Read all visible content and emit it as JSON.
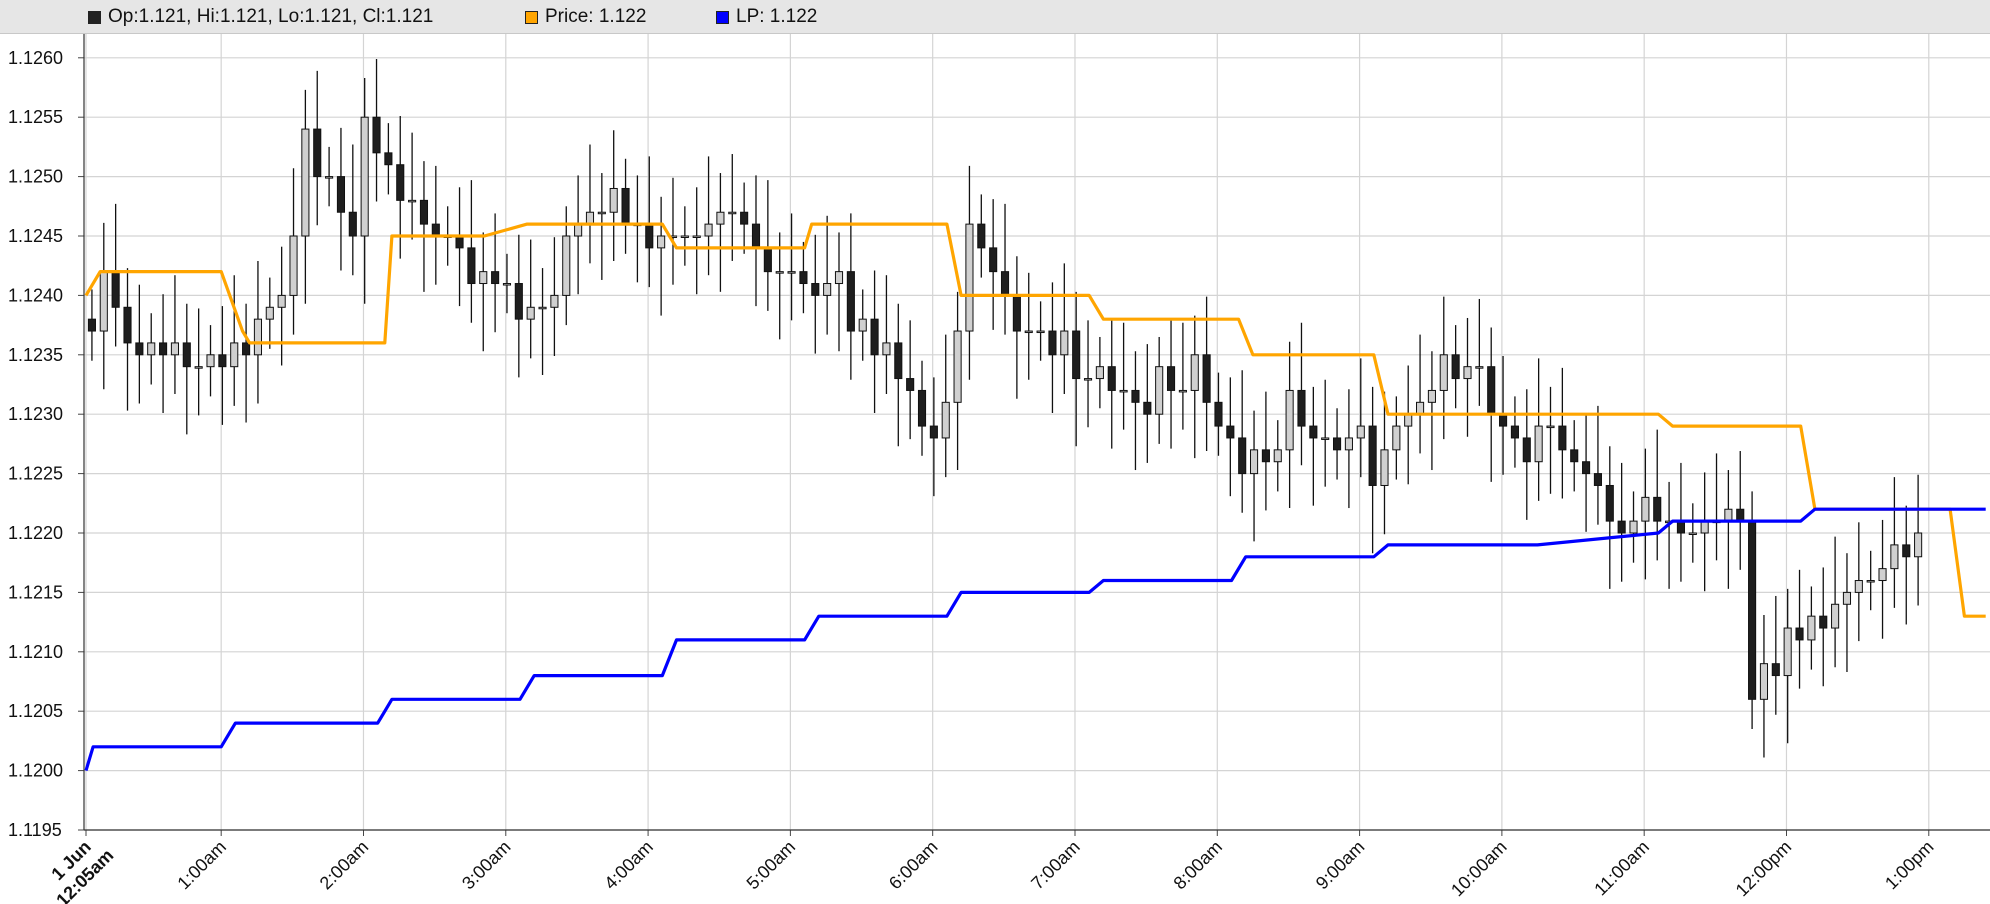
{
  "legend": {
    "ohlc_label": "Op:1.121, Hi:1.121, Lo:1.121, Cl:1.121",
    "price_label": "Price: 1.122",
    "lp_label": "LP: 1.122",
    "ohlc_color": "#222222",
    "price_color": "#ffa500",
    "lp_color": "#0000ff"
  },
  "chart_data": {
    "type": "candlestick",
    "ylim": [
      1.1195,
      1.1264
    ],
    "y_ticks": [
      "1.1260",
      "1.1255",
      "1.1250",
      "1.1245",
      "1.1240",
      "1.1235",
      "1.1230",
      "1.1225",
      "1.1220",
      "1.1215",
      "1.1210",
      "1.1205",
      "1.1200",
      "1.1195"
    ],
    "x_ticks": [
      {
        "label": "1 Jun",
        "sublabel": "12:05am",
        "bold": true
      },
      {
        "label": "1:00am"
      },
      {
        "label": "2:00am"
      },
      {
        "label": "3:00am"
      },
      {
        "label": "4:00am"
      },
      {
        "label": "5:00am"
      },
      {
        "label": "6:00am"
      },
      {
        "label": "7:00am"
      },
      {
        "label": "8:00am"
      },
      {
        "label": "9:00am"
      },
      {
        "label": "10:00am"
      },
      {
        "label": "11:00am"
      },
      {
        "label": "12:00pm"
      },
      {
        "label": "1:00pm"
      }
    ],
    "xlim_hours": [
      0,
      13.35
    ],
    "grid": true,
    "bar_minutes": 5,
    "candles_close": [
      1.1237,
      1.1242,
      1.1239,
      1.1236,
      1.1235,
      1.1236,
      1.1235,
      1.1236,
      1.1234,
      1.1234,
      1.1235,
      1.1234,
      1.1236,
      1.1235,
      1.1238,
      1.1239,
      1.124,
      1.1245,
      1.1254,
      1.125,
      1.125,
      1.1247,
      1.1245,
      1.1255,
      1.1252,
      1.1251,
      1.1248,
      1.1248,
      1.1246,
      1.1245,
      1.1245,
      1.1244,
      1.1241,
      1.1242,
      1.1241,
      1.1241,
      1.1238,
      1.1239,
      1.1239,
      1.124,
      1.1245,
      1.1246,
      1.1247,
      1.1247,
      1.1249,
      1.1246,
      1.1246,
      1.1244,
      1.1245,
      1.1245,
      1.1245,
      1.1245,
      1.1246,
      1.1247,
      1.1247,
      1.1246,
      1.1244,
      1.1242,
      1.1242,
      1.1242,
      1.1241,
      1.124,
      1.1241,
      1.1242,
      1.1237,
      1.1238,
      1.1235,
      1.1236,
      1.1233,
      1.1232,
      1.1229,
      1.1228,
      1.1231,
      1.1237,
      1.1246,
      1.1244,
      1.1242,
      1.124,
      1.1237,
      1.1237,
      1.1237,
      1.1235,
      1.1237,
      1.1233,
      1.1233,
      1.1234,
      1.1232,
      1.1232,
      1.1231,
      1.123,
      1.1234,
      1.1232,
      1.1232,
      1.1235,
      1.1231,
      1.1229,
      1.1228,
      1.1225,
      1.1227,
      1.1226,
      1.1227,
      1.1232,
      1.1229,
      1.1228,
      1.1228,
      1.1227,
      1.1228,
      1.1229,
      1.1224,
      1.1227,
      1.1229,
      1.123,
      1.1231,
      1.1232,
      1.1235,
      1.1233,
      1.1234,
      1.1234,
      1.123,
      1.1229,
      1.1228,
      1.1226,
      1.1229,
      1.1229,
      1.1227,
      1.1226,
      1.1225,
      1.1224,
      1.1221,
      1.122,
      1.1221,
      1.1223,
      1.1221,
      1.1221,
      1.122,
      1.122,
      1.1221,
      1.1221,
      1.1222,
      1.1221,
      1.1206,
      1.1209,
      1.1208,
      1.1212,
      1.1211,
      1.1213,
      1.1212,
      1.1214,
      1.1215,
      1.1216,
      1.1216,
      1.1217,
      1.1219,
      1.1218,
      1.122
    ],
    "price_series": [
      [
        0.0,
        1.124
      ],
      [
        0.1,
        1.1242
      ],
      [
        0.95,
        1.1242
      ],
      [
        1.1,
        1.1237
      ],
      [
        1.15,
        1.1236
      ],
      [
        2.1,
        1.1236
      ],
      [
        2.15,
        1.1245
      ],
      [
        2.75,
        1.1245
      ],
      [
        2.8,
        1.1245
      ],
      [
        3.1,
        1.1246
      ],
      [
        4.05,
        1.1246
      ],
      [
        4.15,
        1.1244
      ],
      [
        5.05,
        1.1244
      ],
      [
        5.1,
        1.1246
      ],
      [
        6.05,
        1.1246
      ],
      [
        6.15,
        1.124
      ],
      [
        7.05,
        1.124
      ],
      [
        7.15,
        1.1238
      ],
      [
        8.1,
        1.1238
      ],
      [
        8.2,
        1.1235
      ],
      [
        9.05,
        1.1235
      ],
      [
        9.15,
        1.123
      ],
      [
        10.15,
        1.123
      ],
      [
        10.2,
        1.123
      ],
      [
        11.05,
        1.123
      ],
      [
        11.15,
        1.1229
      ],
      [
        12.05,
        1.1229
      ],
      [
        12.15,
        1.1222
      ],
      [
        13.1,
        1.1222
      ],
      [
        13.2,
        1.1213
      ],
      [
        13.35,
        1.1213
      ]
    ],
    "lp_series": [
      [
        0.0,
        1.12
      ],
      [
        0.05,
        1.1202
      ],
      [
        0.95,
        1.1202
      ],
      [
        1.05,
        1.1204
      ],
      [
        2.05,
        1.1204
      ],
      [
        2.15,
        1.1206
      ],
      [
        3.05,
        1.1206
      ],
      [
        3.15,
        1.1208
      ],
      [
        4.05,
        1.1208
      ],
      [
        4.15,
        1.1211
      ],
      [
        5.05,
        1.1211
      ],
      [
        5.15,
        1.1213
      ],
      [
        6.05,
        1.1213
      ],
      [
        6.15,
        1.1215
      ],
      [
        7.05,
        1.1215
      ],
      [
        7.15,
        1.1216
      ],
      [
        8.05,
        1.1216
      ],
      [
        8.15,
        1.1218
      ],
      [
        9.05,
        1.1218
      ],
      [
        9.15,
        1.1219
      ],
      [
        10.15,
        1.1219
      ],
      [
        10.2,
        1.1219
      ],
      [
        11.05,
        1.122
      ],
      [
        11.15,
        1.1221
      ],
      [
        12.05,
        1.1221
      ],
      [
        12.15,
        1.1222
      ],
      [
        13.35,
        1.1222
      ]
    ]
  }
}
